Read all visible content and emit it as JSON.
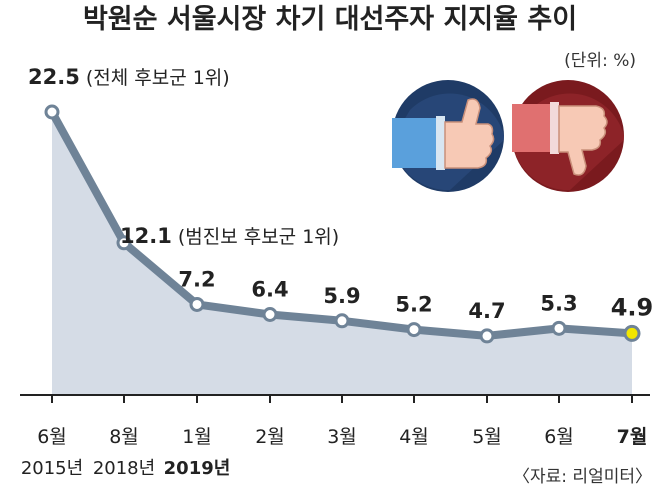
{
  "chart_data": {
    "type": "line",
    "title": "박원순 서울시장 차기 대선주자 지지율 추이",
    "unit": "(단위: %)",
    "source": "〈자료: 리얼미터〉",
    "categories": [
      "6월",
      "8월",
      "1월",
      "2월",
      "3월",
      "4월",
      "5월",
      "6월",
      "7월"
    ],
    "year_labels": [
      {
        "index": 0,
        "label": "2015년"
      },
      {
        "index": 1,
        "label": "2018년"
      },
      {
        "index": 2,
        "label": "2019년"
      }
    ],
    "values": [
      22.5,
      12.1,
      7.2,
      6.4,
      5.9,
      5.2,
      4.7,
      5.3,
      4.9
    ],
    "value_labels": [
      "22.5",
      "12.1",
      "7.2",
      "6.4",
      "5.9",
      "5.2",
      "4.7",
      "5.3",
      "4.9"
    ],
    "annotations": [
      {
        "index": 0,
        "text": "(전체 후보군 1위)"
      },
      {
        "index": 1,
        "text": "(범진보 후보군 1위)"
      }
    ],
    "highlight_index": 8,
    "ylim": [
      0,
      25
    ],
    "grid": false,
    "colors": {
      "line": "#6f8397",
      "area": "#d5dce6",
      "marker_fill": "#ffffff",
      "highlight_marker": "#f2e600",
      "text": "#222222"
    },
    "icons": [
      "thumbs-up-icon",
      "thumbs-down-icon"
    ]
  }
}
